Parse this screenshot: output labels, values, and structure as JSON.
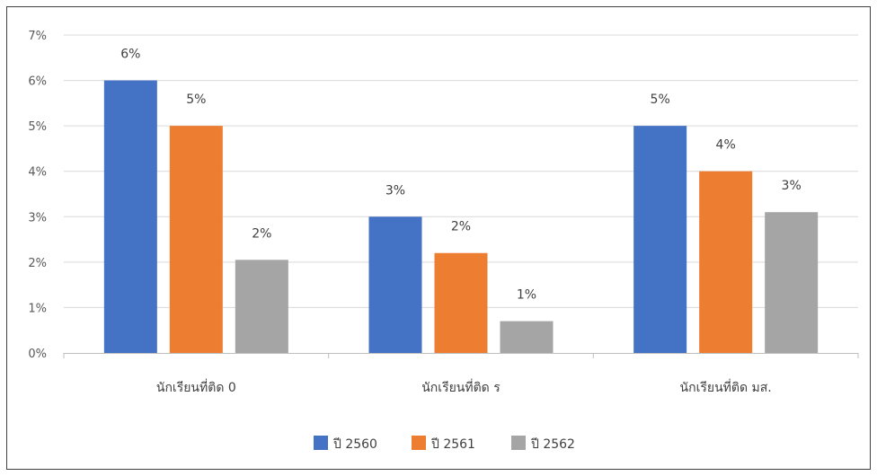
{
  "chart_data": {
    "type": "bar",
    "categories": [
      "นักเรียนที่ติด 0",
      "นักเรียนที่ติด ร",
      "นักเรียนที่ติด มส."
    ],
    "series": [
      {
        "name": "ปี 2560",
        "values": [
          6.0,
          3.0,
          5.0
        ],
        "labels": [
          "6%",
          "3%",
          "5%"
        ],
        "color": "#4472c4"
      },
      {
        "name": "ปี 2561",
        "values": [
          5.0,
          2.2,
          4.0
        ],
        "labels": [
          "5%",
          "2%",
          "4%"
        ],
        "color": "#ed7d31"
      },
      {
        "name": "ปี 2562",
        "values": [
          2.05,
          0.7,
          3.1
        ],
        "labels": [
          "2%",
          "1%",
          "3%"
        ],
        "color": "#a5a5a5"
      }
    ],
    "yticks": [
      0,
      1,
      2,
      3,
      4,
      5,
      6,
      7
    ],
    "ytick_labels": [
      "0%",
      "1%",
      "2%",
      "3%",
      "4%",
      "5%",
      "6%",
      "7%"
    ],
    "ylim": [
      0,
      7
    ],
    "grid": true,
    "legend_position": "bottom",
    "gridline_color": "#d9d9d9"
  }
}
